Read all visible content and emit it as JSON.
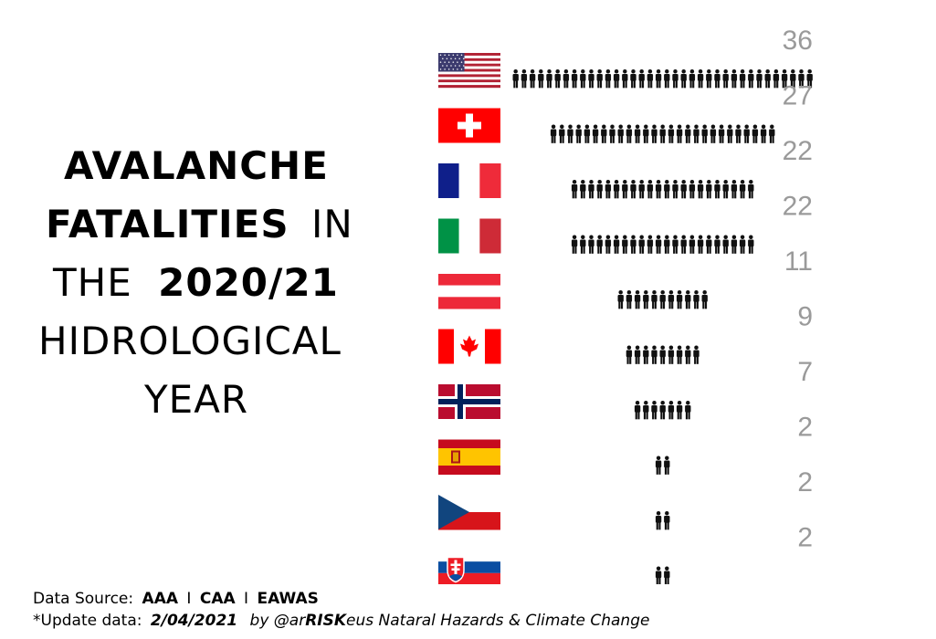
{
  "title": {
    "word_avalanche": "AVALANCHE",
    "word_fatalities": "FATALITIES",
    "word_in": "IN",
    "word_the": "THE",
    "word_year_label": "2020/21",
    "word_hidrological": "HIDROLOGICAL",
    "word_year": "YEAR"
  },
  "chart_data": {
    "type": "bar",
    "categories": [
      "USA",
      "Switzerland",
      "France",
      "Italy",
      "Austria",
      "Canada",
      "Norway",
      "Spain",
      "Czech Republic",
      "Slovakia"
    ],
    "values": [
      36,
      27,
      22,
      22,
      11,
      9,
      7,
      2,
      2,
      2
    ],
    "title": "",
    "xlabel": "",
    "ylabel": "",
    "value_color": "#9a9a9a",
    "icon_color": "#111111",
    "icons": [
      "flag-usa-icon",
      "flag-switzerland-icon",
      "flag-france-icon",
      "flag-italy-icon",
      "flag-austria-icon",
      "flag-canada-icon",
      "flag-norway-icon",
      "flag-spain-icon",
      "flag-czech-icon",
      "flag-slovakia-icon"
    ]
  },
  "footer": {
    "source_prefix": "Data Source:",
    "source_1": "AAA",
    "source_2": "CAA",
    "source_3": "EAWAS",
    "separator": "I",
    "update_prefix": "*Update data:",
    "update_date": "2/04/2021",
    "by_prefix": "by @ar",
    "by_bold": "RISK",
    "by_suffix": "eus Nataral Hazards & Climate Change"
  }
}
